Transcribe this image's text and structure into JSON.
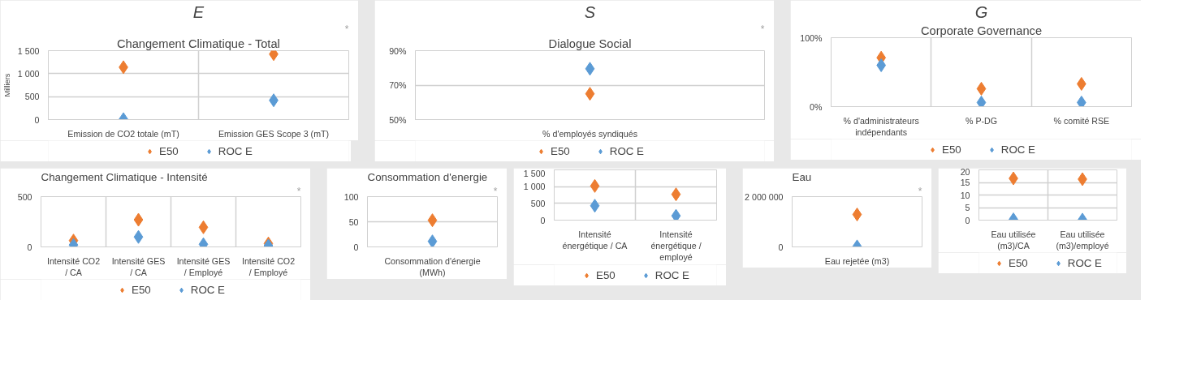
{
  "chart_data": [
    {
      "type": "scatter",
      "title": "E",
      "subtitle": "Changement Climatique - Total",
      "annotations": [
        "*"
      ],
      "ylabel": "Milliers",
      "categories": [
        "Emission de CO2 totale (mT)",
        "Emission GES Scope 3 (mT)"
      ],
      "ylim": [
        0,
        1500
      ],
      "yticks": [
        0,
        500,
        {
          "value": 1000,
          "label": "1 000"
        },
        {
          "value": 1500,
          "label": "1 500"
        }
      ],
      "grid": true,
      "marker": "diamond",
      "legend": "bottom",
      "series": [
        {
          "name": "E50",
          "color": "#ed7d31",
          "values": [
            1140,
            1425
          ]
        },
        {
          "name": "ROC E",
          "color": "#5b9bd5",
          "values": [
            10,
            420
          ]
        }
      ]
    },
    {
      "type": "scatter",
      "title": "S",
      "subtitle": "Dialogue Social",
      "annotations": [
        "*"
      ],
      "categories": [
        "% d'employés syndiqués"
      ],
      "ylim": [
        50,
        90
      ],
      "yticks": [
        {
          "value": 50,
          "label": "50%"
        },
        {
          "value": 70,
          "label": "70%"
        },
        {
          "value": 90,
          "label": "90%"
        }
      ],
      "grid": "y",
      "marker": "diamond",
      "legend": "bottom",
      "series": [
        {
          "name": "E50",
          "color": "#ed7d31",
          "values": [
            65
          ]
        },
        {
          "name": "ROC E",
          "color": "#5b9bd5",
          "values": [
            79.5
          ]
        }
      ]
    },
    {
      "type": "scatter",
      "title": "G",
      "subtitle": "Corporate Governance",
      "categories": [
        "% d'administrateurs indépendants",
        "% P-DG",
        "% comité RSE"
      ],
      "ylim": [
        0,
        100
      ],
      "yticks": [
        {
          "value": 0,
          "label": "0%"
        },
        {
          "value": 100,
          "label": "100%"
        }
      ],
      "grid": "x",
      "marker": "diamond",
      "legend": "bottom",
      "series": [
        {
          "name": "E50",
          "color": "#ed7d31",
          "values": [
            71,
            26,
            33
          ]
        },
        {
          "name": "ROC E",
          "color": "#5b9bd5",
          "values": [
            60,
            6,
            6
          ]
        }
      ]
    },
    {
      "type": "scatter",
      "title": "Changement Climatique - Intensité",
      "annotations": [
        "*"
      ],
      "categories": [
        "Intensité CO2 / CA",
        "Intensité GES / CA",
        "Intensité GES / Employé",
        "Intensité CO2 / Employé"
      ],
      "ylim": [
        0,
        500
      ],
      "yticks": [
        0,
        500
      ],
      "grid": "x",
      "marker": "diamond",
      "legend": "bottom",
      "series": [
        {
          "name": "E50",
          "color": "#ed7d31",
          "values": [
            63,
            270,
            195,
            34
          ]
        },
        {
          "name": "ROC E",
          "color": "#5b9bd5",
          "values": [
            19,
            99,
            26,
            12
          ]
        }
      ]
    },
    {
      "type": "scatter",
      "title": "Consommation d'energie",
      "annotations": [
        "*"
      ],
      "categories": [
        "Consommation d'énergie (MWh)"
      ],
      "ylim": [
        0,
        100
      ],
      "yticks": [
        0,
        50,
        100
      ],
      "grid": "y",
      "marker": "diamond",
      "series": [
        {
          "color": "#ed7d31",
          "values": [
            53
          ]
        },
        {
          "color": "#5b9bd5",
          "values": [
            11
          ]
        }
      ]
    },
    {
      "type": "scatter",
      "categories": [
        "Intensité énergétique / CA",
        "Intensité énergétique / employé"
      ],
      "ylim": [
        0,
        1500
      ],
      "yticks": [
        0,
        500,
        {
          "value": 1000,
          "label": "1 000"
        },
        {
          "value": 1500,
          "label": "1 500"
        }
      ],
      "grid": true,
      "marker": "diamond",
      "legend": "bottom",
      "series": [
        {
          "name": "E50",
          "color": "#ed7d31",
          "values": [
            1020,
            770
          ]
        },
        {
          "name": "ROC E",
          "color": "#5b9bd5",
          "values": [
            430,
            130
          ]
        }
      ]
    },
    {
      "type": "scatter",
      "title": "Eau",
      "annotations": [
        "*"
      ],
      "categories": [
        "Eau rejetée (m3)"
      ],
      "ylim": [
        0,
        2000000
      ],
      "yticks": [
        0,
        {
          "value": 2000000,
          "label": "2 000 000"
        }
      ],
      "marker": "diamond",
      "series": [
        {
          "color": "#ed7d31",
          "values": [
            1290000
          ]
        },
        {
          "color": "#5b9bd5",
          "values": [
            20000
          ]
        }
      ]
    },
    {
      "type": "scatter",
      "categories": [
        "Eau utilisée (m3)/CA",
        "Eau utilisée (m3)/employé"
      ],
      "ylim": [
        0,
        20
      ],
      "yticks": [
        0,
        5,
        10,
        15,
        20
      ],
      "grid": true,
      "marker": "diamond",
      "legend": "bottom",
      "series": [
        {
          "name": "E50",
          "color": "#ed7d31",
          "values": [
            16.6,
            16.3
          ]
        },
        {
          "name": "ROC E",
          "color": "#5b9bd5",
          "values": [
            0.3,
            0.2
          ]
        }
      ]
    }
  ]
}
